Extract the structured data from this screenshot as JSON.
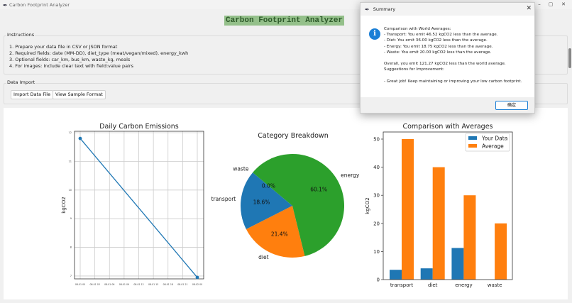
{
  "window": {
    "title": "Carbon Footprint Analyzer"
  },
  "app": {
    "heading": "Carbon Footprint Analyzer",
    "heading_bg": "#94c08a"
  },
  "instructions": {
    "label": "Instructions",
    "lines": [
      "1. Prepare your data file in CSV or JSON format",
      "2. Required fields: date (MM-DD), diet_type (meat/vegan/mixed), energy_kwh",
      "3. Optional fields: car_km, bus_km, waste_kg, meals",
      "4. For images: Include clear text with field:value pairs"
    ]
  },
  "import": {
    "label": "Data Import",
    "import_button": "Import Data File",
    "sample_button": "View Sample Format"
  },
  "dialog": {
    "title": "Summary",
    "icon": "info-icon",
    "message": "Comparison with World Averages:\n- Transport: You emit 46.52 kgCO2 less than the average.\n- Diet: You emit 36.00 kgCO2 less than the average.\n- Energy: You emit 18.75 kgCO2 less than the average.\n- Waste: You emit 20.00 kgCO2 less than the average.\n\nOverall, you emit 121.27 kgCO2 less than the world average.\nSuggestions for Improvement:\n\n- Great job! Keep maintaining or improving your low carbon footprint.",
    "ok_button": "确定"
  },
  "chart_data": [
    {
      "type": "line",
      "title": "Daily Carbon Emissions",
      "xlabel": "",
      "ylabel": "kgCO2",
      "x": [
        "08-01 00",
        "08-02 00"
      ],
      "y": [
        11.8,
        6.95
      ],
      "xticks": [
        "08-01 00",
        "08-01 03",
        "08-01 06",
        "08-01 09",
        "08-01 12",
        "08-01 15",
        "08-01 18",
        "08-01 21",
        "08-02 00"
      ],
      "yticks": [
        "7",
        "8",
        "9",
        "10",
        "11",
        "12"
      ],
      "ylim": [
        6.9,
        12.05
      ],
      "grid": true,
      "color": "#1f77b4"
    },
    {
      "type": "pie",
      "title": "Category Breakdown",
      "labels": [
        "transport",
        "diet",
        "energy",
        "waste"
      ],
      "values": [
        18.6,
        21.4,
        60.1,
        0.0
      ],
      "pct_labels": [
        "18.6%",
        "21.4%",
        "60.1%",
        "0.0%"
      ],
      "colors": [
        "#1f77b4",
        "#ff7f0e",
        "#2ca02c",
        "#d62728"
      ]
    },
    {
      "type": "bar",
      "title": "Comparison with Averages",
      "ylabel": "kgCO2",
      "categories": [
        "transport",
        "diet",
        "energy",
        "waste"
      ],
      "series": [
        {
          "name": "Your Data",
          "values": [
            3.48,
            4.0,
            11.25,
            0.0
          ],
          "color": "#1f77b4"
        },
        {
          "name": "Average",
          "values": [
            50,
            40,
            30,
            20
          ],
          "color": "#ff7f0e"
        }
      ],
      "yticks": [
        "0",
        "10",
        "20",
        "30",
        "40",
        "50"
      ],
      "ylim": [
        0,
        52.5
      ],
      "legend": "top-right"
    }
  ]
}
